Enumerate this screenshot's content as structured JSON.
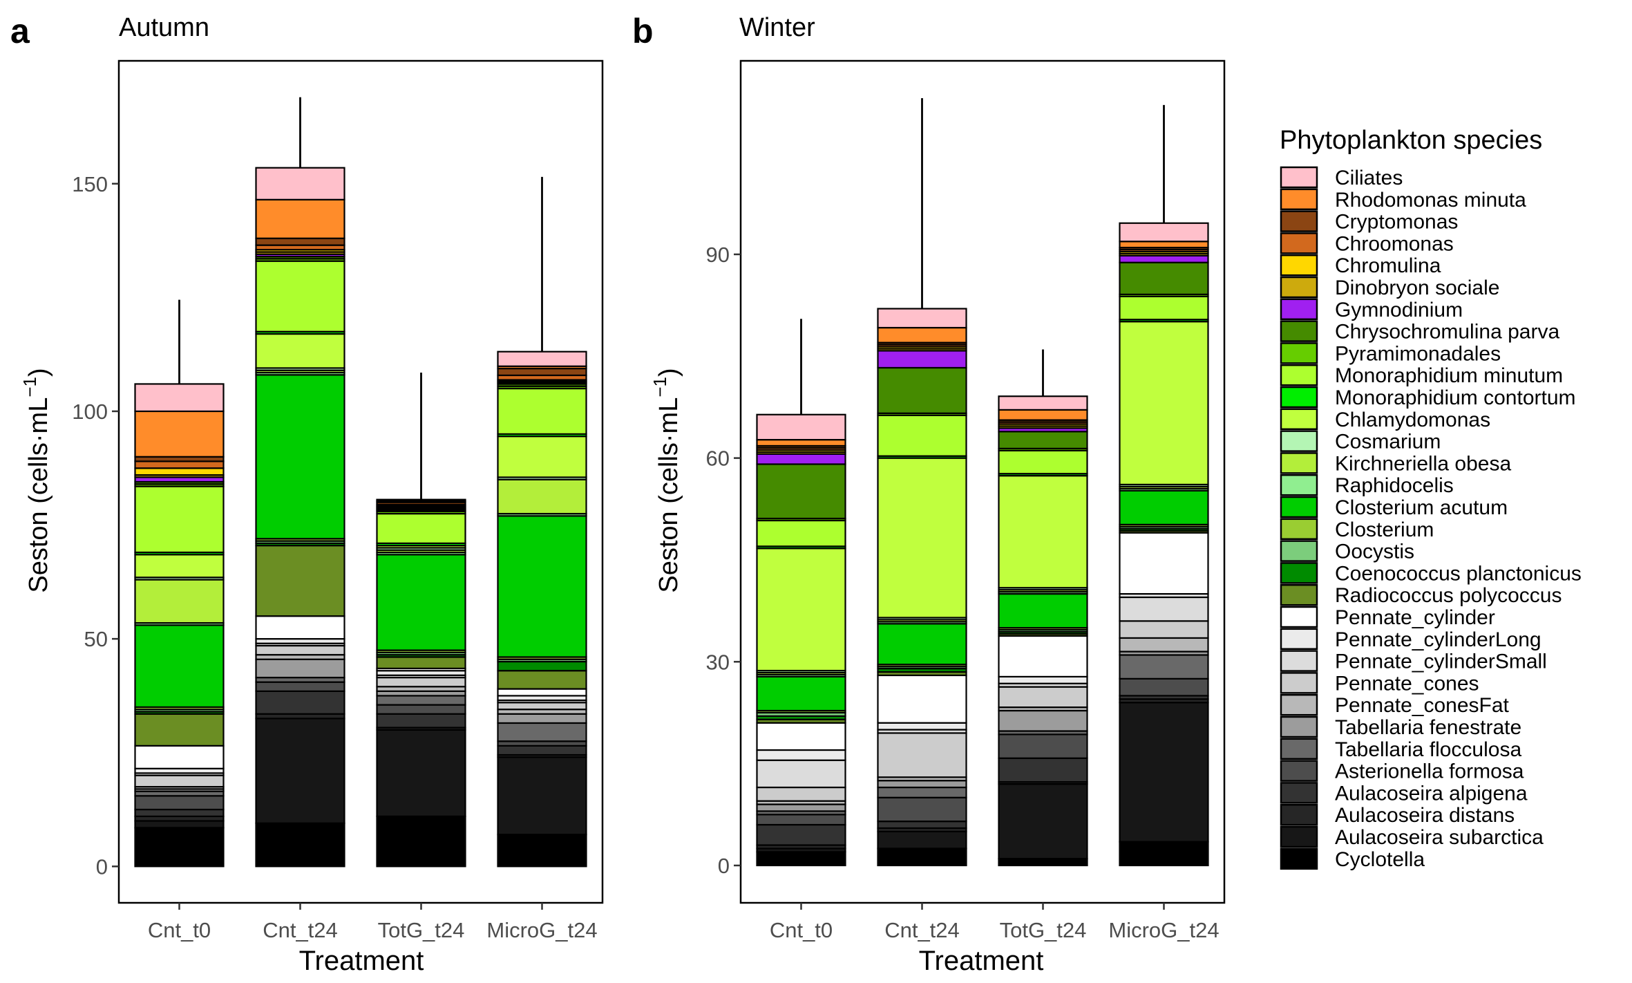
{
  "figure": {
    "legend_title": "Phytoplankton species"
  },
  "legend": [
    {
      "name": "Ciliates",
      "color": "#FFC0CB"
    },
    {
      "name": "Rhodomonas minuta",
      "color": "#FF8C2A"
    },
    {
      "name": "Cryptomonas",
      "color": "#8B4513"
    },
    {
      "name": "Chroomonas",
      "color": "#D2691E"
    },
    {
      "name": "Chromulina",
      "color": "#FFD700"
    },
    {
      "name": "Dinobryon sociale",
      "color": "#CDAA0D"
    },
    {
      "name": "Gymnodinium",
      "color": "#A020F0"
    },
    {
      "name": "Chrysochromulina parva",
      "color": "#458B00"
    },
    {
      "name": "Pyramimonadales",
      "color": "#66CD00"
    },
    {
      "name": "Monoraphidium minutum",
      "color": "#ADFF2F"
    },
    {
      "name": "Monoraphidium contortum",
      "color": "#00EE00"
    },
    {
      "name": "Chlamydomonas",
      "color": "#C0FF3E"
    },
    {
      "name": "Cosmarium",
      "color": "#B4F5B4"
    },
    {
      "name": "Kirchneriella obesa",
      "color": "#B3EE3A"
    },
    {
      "name": "Raphidocelis",
      "color": "#90EE90"
    },
    {
      "name": "Closterium acutum",
      "color": "#00CD00"
    },
    {
      "name": "Closterium",
      "color": "#9ACD32"
    },
    {
      "name": "Oocystis",
      "color": "#7CCD7C"
    },
    {
      "name": "Coenococcus planctonicus",
      "color": "#008B00"
    },
    {
      "name": "Radiococcus polycoccus",
      "color": "#6B8E23"
    },
    {
      "name": "Pennate_cylinder",
      "color": "#FFFFFF"
    },
    {
      "name": "Pennate_cylinderLong",
      "color": "#EBEBEB"
    },
    {
      "name": "Pennate_cylinderSmall",
      "color": "#DCDCDC"
    },
    {
      "name": "Pennate_cones",
      "color": "#CCCCCC"
    },
    {
      "name": "Pennate_conesFat",
      "color": "#B8B8B8"
    },
    {
      "name": "Tabellaria fenestrate",
      "color": "#9C9C9C"
    },
    {
      "name": "Tabellaria flocculosa",
      "color": "#696969"
    },
    {
      "name": "Asterionella formosa",
      "color": "#4D4D4D"
    },
    {
      "name": "Aulacoseira alpigena",
      "color": "#333333"
    },
    {
      "name": "Aulacoseira distans",
      "color": "#262626"
    },
    {
      "name": "Aulacoseira subarctica",
      "color": "#171717"
    },
    {
      "name": "Cyclotella",
      "color": "#000000"
    }
  ],
  "chart_data": [
    {
      "type": "bar",
      "stacked": true,
      "panel_tag": "a",
      "title": "Autumn",
      "xlabel": "Treatment",
      "ylabel": "Seston (cells·mL",
      "ylabel_exp": "−1",
      "ylabel_close": ")",
      "ylim": [
        -8,
        177
      ],
      "yticks": [
        0,
        50,
        100,
        150
      ],
      "categories": [
        "Cnt_t0",
        "Cnt_t24",
        "TotG_t24",
        "MicroG_t24"
      ],
      "error_top": [
        124.5,
        169.0,
        108.5,
        151.5
      ],
      "series": [
        {
          "name": "Cyclotella",
          "values": [
            8.5,
            9.5,
            11.0,
            7.0
          ]
        },
        {
          "name": "Aulacoseira subarctica",
          "values": [
            1.5,
            23.0,
            19.0,
            17.0
          ]
        },
        {
          "name": "Aulacoseira distans",
          "values": [
            1.0,
            1.0,
            0.5,
            0.5
          ]
        },
        {
          "name": "Aulacoseira alpigena",
          "values": [
            1.5,
            5.0,
            3.0,
            2.0
          ]
        },
        {
          "name": "Asterionella formosa",
          "values": [
            3.0,
            2.0,
            2.0,
            1.0
          ]
        },
        {
          "name": "Tabellaria flocculosa",
          "values": [
            1.0,
            1.0,
            2.0,
            4.0
          ]
        },
        {
          "name": "Tabellaria fenestrate",
          "values": [
            0.5,
            4.0,
            1.0,
            2.0
          ]
        },
        {
          "name": "Pennate_conesFat",
          "values": [
            0.5,
            1.0,
            1.0,
            1.0
          ]
        },
        {
          "name": "Pennate_cones",
          "values": [
            2.5,
            2.0,
            2.0,
            1.5
          ]
        },
        {
          "name": "Pennate_cylinderSmall",
          "values": [
            0.5,
            0.5,
            0.5,
            0.5
          ]
        },
        {
          "name": "Pennate_cylinderLong",
          "values": [
            1.0,
            1.0,
            1.0,
            1.0
          ]
        },
        {
          "name": "Pennate_cylinder",
          "values": [
            5.0,
            5.0,
            0.5,
            1.5
          ]
        },
        {
          "name": "Radiococcus polycoccus",
          "values": [
            7.0,
            15.5,
            2.5,
            4.0
          ]
        },
        {
          "name": "Coenococcus planctonicus",
          "values": [
            0.5,
            0.5,
            0.5,
            2.0
          ]
        },
        {
          "name": "Oocystis",
          "values": [
            0.5,
            0.5,
            0.5,
            0.5
          ]
        },
        {
          "name": "Closterium",
          "values": [
            0.5,
            0.5,
            0.5,
            0.5
          ]
        },
        {
          "name": "Closterium acutum",
          "values": [
            18.0,
            36.0,
            21.0,
            31.0
          ]
        },
        {
          "name": "Raphidocelis",
          "values": [
            0.5,
            0.5,
            0.5,
            0.5
          ]
        },
        {
          "name": "Kirchneriella obesa",
          "values": [
            9.5,
            0.5,
            0.5,
            7.5
          ]
        },
        {
          "name": "Cosmarium",
          "values": [
            0.5,
            0.5,
            0.5,
            0.5
          ]
        },
        {
          "name": "Chlamydomonas",
          "values": [
            5.0,
            7.5,
            0.5,
            9.0
          ]
        },
        {
          "name": "Monoraphidium contortum",
          "values": [
            0.5,
            0.5,
            0.5,
            0.5
          ]
        },
        {
          "name": "Monoraphidium minutum",
          "values": [
            14.5,
            15.5,
            6.5,
            10.0
          ]
        },
        {
          "name": "Pyramimonadales",
          "values": [
            0.5,
            0.5,
            0.5,
            0.5
          ]
        },
        {
          "name": "Chrysochromulina parva",
          "values": [
            0.5,
            0.5,
            0.3,
            0.5
          ]
        },
        {
          "name": "Gymnodinium",
          "values": [
            1.0,
            0.5,
            0.3,
            0.3
          ]
        },
        {
          "name": "Dinobryon sociale",
          "values": [
            0.5,
            0.5,
            0.3,
            0.3
          ]
        },
        {
          "name": "Chromulina",
          "values": [
            1.5,
            0.5,
            0.3,
            0.3
          ]
        },
        {
          "name": "Chroomonas",
          "values": [
            1.5,
            1.0,
            0.3,
            1.0
          ]
        },
        {
          "name": "Cryptomonas",
          "values": [
            1.0,
            1.5,
            0.5,
            1.5
          ]
        },
        {
          "name": "Rhodomonas minuta",
          "values": [
            10.0,
            8.5,
            0.3,
            0.5
          ]
        },
        {
          "name": "Ciliates",
          "values": [
            6.0,
            7.0,
            0.3,
            3.2
          ]
        }
      ]
    },
    {
      "type": "bar",
      "stacked": true,
      "panel_tag": "b",
      "title": "Winter",
      "xlabel": "Treatment",
      "ylabel": "Seston (cells·mL",
      "ylabel_exp": "−1",
      "ylabel_close": ")",
      "ylim": [
        -5.5,
        118.5
      ],
      "yticks": [
        0,
        30,
        60,
        90
      ],
      "categories": [
        "Cnt_t0",
        "Cnt_t24",
        "TotG_t24",
        "MicroG_t24"
      ],
      "error_top": [
        80.5,
        113.0,
        76.0,
        112.0
      ],
      "series": [
        {
          "name": "Cyclotella",
          "values": [
            2.0,
            2.5,
            1.0,
            3.5
          ]
        },
        {
          "name": "Aulacoseira subarctica",
          "values": [
            0.5,
            2.5,
            11.0,
            20.5
          ]
        },
        {
          "name": "Aulacoseira distans",
          "values": [
            0.5,
            0.5,
            0.3,
            0.5
          ]
        },
        {
          "name": "Aulacoseira alpigena",
          "values": [
            3.0,
            1.0,
            3.5,
            0.5
          ]
        },
        {
          "name": "Asterionella formosa",
          "values": [
            1.5,
            3.5,
            3.5,
            2.5
          ]
        },
        {
          "name": "Tabellaria flocculosa",
          "values": [
            0.5,
            1.5,
            0.5,
            3.5
          ]
        },
        {
          "name": "Tabellaria fenestrate",
          "values": [
            1.0,
            1.0,
            3.0,
            0.5
          ]
        },
        {
          "name": "Pennate_conesFat",
          "values": [
            0.5,
            0.5,
            0.5,
            2.0
          ]
        },
        {
          "name": "Pennate_cones",
          "values": [
            2.0,
            6.5,
            3.0,
            2.5
          ]
        },
        {
          "name": "Pennate_cylinderSmall",
          "values": [
            4.0,
            0.5,
            0.5,
            3.5
          ]
        },
        {
          "name": "Pennate_cylinderLong",
          "values": [
            1.5,
            1.0,
            1.0,
            0.5
          ]
        },
        {
          "name": "Pennate_cylinder",
          "values": [
            4.0,
            7.0,
            6.0,
            9.0
          ]
        },
        {
          "name": "Radiococcus polycoccus",
          "values": [
            0.5,
            0.5,
            0.3,
            0.3
          ]
        },
        {
          "name": "Coenococcus planctonicus",
          "values": [
            0.5,
            0.5,
            0.3,
            0.3
          ]
        },
        {
          "name": "Oocystis",
          "values": [
            0.5,
            0.3,
            0.3,
            0.3
          ]
        },
        {
          "name": "Closterium",
          "values": [
            0.3,
            0.3,
            0.3,
            0.3
          ]
        },
        {
          "name": "Closterium acutum",
          "values": [
            5.0,
            6.0,
            5.0,
            5.0
          ]
        },
        {
          "name": "Raphidocelis",
          "values": [
            0.3,
            0.3,
            0.3,
            0.3
          ]
        },
        {
          "name": "Kirchneriella obesa",
          "values": [
            0.3,
            0.3,
            0.3,
            0.3
          ]
        },
        {
          "name": "Cosmarium",
          "values": [
            0.3,
            0.3,
            0.3,
            0.3
          ]
        },
        {
          "name": "Chlamydomonas",
          "values": [
            18.0,
            23.5,
            16.5,
            24.0
          ]
        },
        {
          "name": "Monoraphidium contortum",
          "values": [
            0.3,
            0.3,
            0.3,
            0.3
          ]
        },
        {
          "name": "Monoraphidium minutum",
          "values": [
            3.8,
            6.0,
            3.4,
            3.4
          ]
        },
        {
          "name": "Pyramimonadales",
          "values": [
            0.3,
            0.3,
            0.3,
            0.3
          ]
        },
        {
          "name": "Chrysochromulina parva",
          "values": [
            8.0,
            6.7,
            2.5,
            4.7
          ]
        },
        {
          "name": "Gymnodinium",
          "values": [
            1.5,
            2.5,
            0.5,
            1.0
          ]
        },
        {
          "name": "Dinobryon sociale",
          "values": [
            0.3,
            0.3,
            0.3,
            0.3
          ]
        },
        {
          "name": "Chromulina",
          "values": [
            0.3,
            0.3,
            0.3,
            0.3
          ]
        },
        {
          "name": "Chroomonas",
          "values": [
            0.3,
            0.3,
            0.3,
            0.3
          ]
        },
        {
          "name": "Cryptomonas",
          "values": [
            0.3,
            0.3,
            0.3,
            0.3
          ]
        },
        {
          "name": "Rhodomonas minuta",
          "values": [
            0.9,
            2.2,
            1.5,
            0.9
          ]
        },
        {
          "name": "Ciliates",
          "values": [
            3.7,
            2.8,
            2.0,
            2.7
          ]
        }
      ]
    }
  ]
}
